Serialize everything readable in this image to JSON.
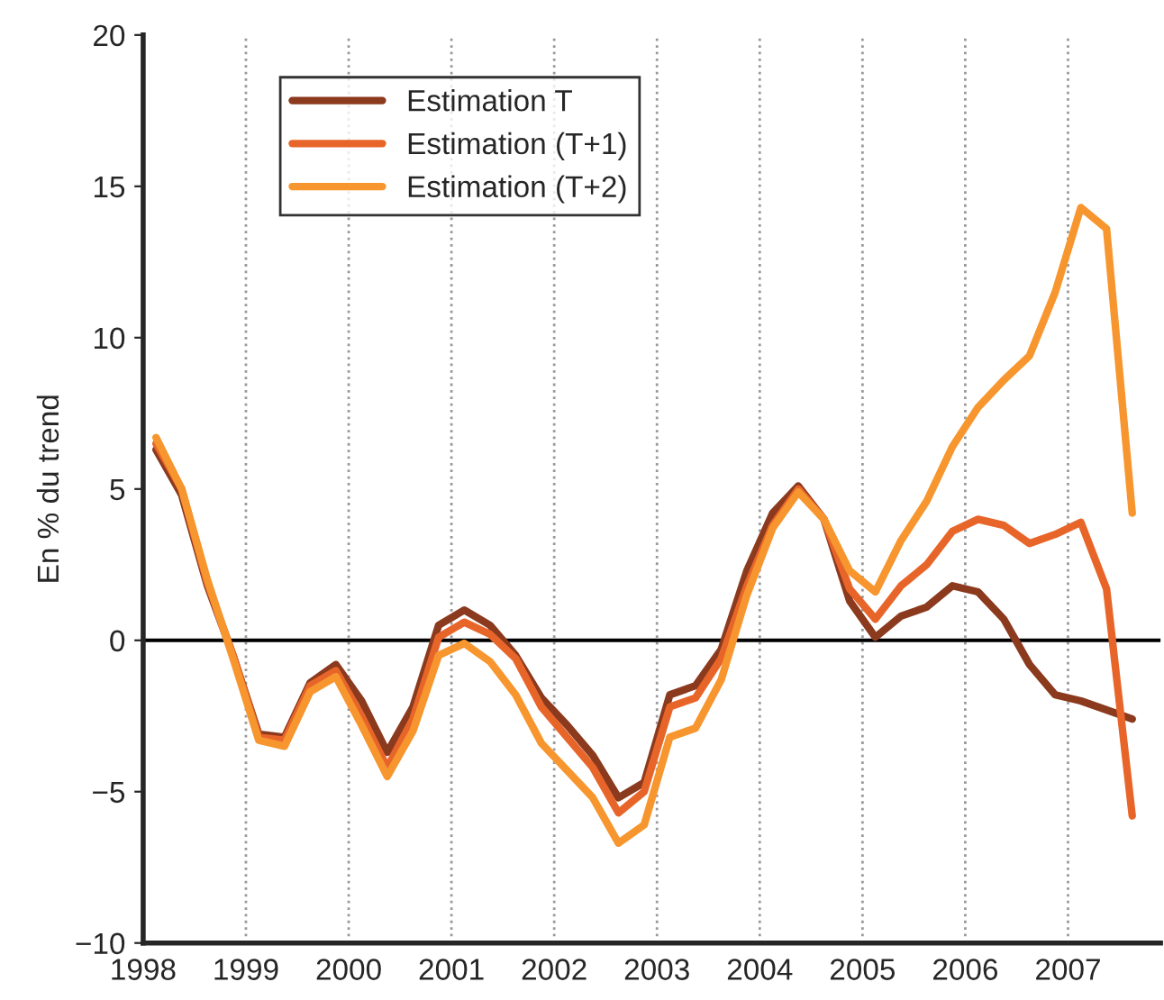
{
  "chart_data": {
    "type": "line",
    "ylabel": "En % du trend",
    "x": [
      1998.125,
      1998.375,
      1998.625,
      1998.875,
      1999.125,
      1999.375,
      1999.625,
      1999.875,
      2000.125,
      2000.375,
      2000.625,
      2000.875,
      2001.125,
      2001.375,
      2001.625,
      2001.875,
      2002.125,
      2002.375,
      2002.625,
      2002.875,
      2003.125,
      2003.375,
      2003.625,
      2003.875,
      2004.125,
      2004.375,
      2004.625,
      2004.875,
      2005.125,
      2005.375,
      2005.625,
      2005.875,
      2006.125,
      2006.375,
      2006.625,
      2006.875,
      2007.125,
      2007.375,
      2007.625
    ],
    "series": [
      {
        "name": "Estimation T",
        "color": "#8b3a1e",
        "values": [
          6.3,
          4.8,
          1.8,
          -0.5,
          -3.1,
          -3.2,
          -1.4,
          -0.8,
          -2.0,
          -3.7,
          -2.2,
          0.5,
          1.0,
          0.5,
          -0.5,
          -1.9,
          -2.8,
          -3.8,
          -5.2,
          -4.7,
          -1.8,
          -1.5,
          -0.3,
          2.3,
          4.2,
          5.1,
          4.0,
          1.3,
          0.1,
          0.8,
          1.1,
          1.8,
          1.6,
          0.7,
          -0.8,
          -1.8,
          -2.0,
          -2.3,
          -2.6
        ]
      },
      {
        "name": "Estimation (T+1)",
        "color": "#e8652a",
        "values": [
          6.5,
          5.0,
          1.9,
          -0.5,
          -3.2,
          -3.3,
          -1.5,
          -1.0,
          -2.5,
          -4.2,
          -2.6,
          0.1,
          0.6,
          0.2,
          -0.6,
          -2.2,
          -3.2,
          -4.2,
          -5.7,
          -5.0,
          -2.2,
          -1.9,
          -0.6,
          1.8,
          3.8,
          5.0,
          4.0,
          1.7,
          0.7,
          1.8,
          2.5,
          3.6,
          4.0,
          3.8,
          3.2,
          3.5,
          3.9,
          1.7,
          -5.8
        ]
      },
      {
        "name": "Estimation (T+2)",
        "color": "#f7962e",
        "values": [
          6.7,
          5.0,
          2.0,
          -0.6,
          -3.3,
          -3.5,
          -1.7,
          -1.2,
          -2.8,
          -4.5,
          -3.0,
          -0.5,
          -0.1,
          -0.7,
          -1.8,
          -3.4,
          -4.3,
          -5.2,
          -6.7,
          -6.1,
          -3.2,
          -2.9,
          -1.3,
          1.5,
          3.7,
          4.9,
          4.0,
          2.3,
          1.6,
          3.3,
          4.6,
          6.4,
          7.7,
          8.6,
          9.4,
          11.5,
          14.3,
          13.6,
          4.2
        ]
      }
    ],
    "xlim": [
      1998,
      2007.9
    ],
    "xticks": [
      1998,
      1999,
      2000,
      2001,
      2002,
      2003,
      2004,
      2005,
      2006,
      2007
    ],
    "ylim": [
      -10,
      20
    ],
    "yticks": [
      {
        "value": -10,
        "label": "−10"
      },
      {
        "value": -5,
        "label": "−5"
      },
      0,
      5,
      10,
      15,
      20
    ],
    "ref_lines": [
      {
        "axis": "y",
        "value": 0,
        "color": "#000000"
      }
    ],
    "grid": "x",
    "legend": "top left",
    "marker": "none",
    "line_style": "solid"
  }
}
